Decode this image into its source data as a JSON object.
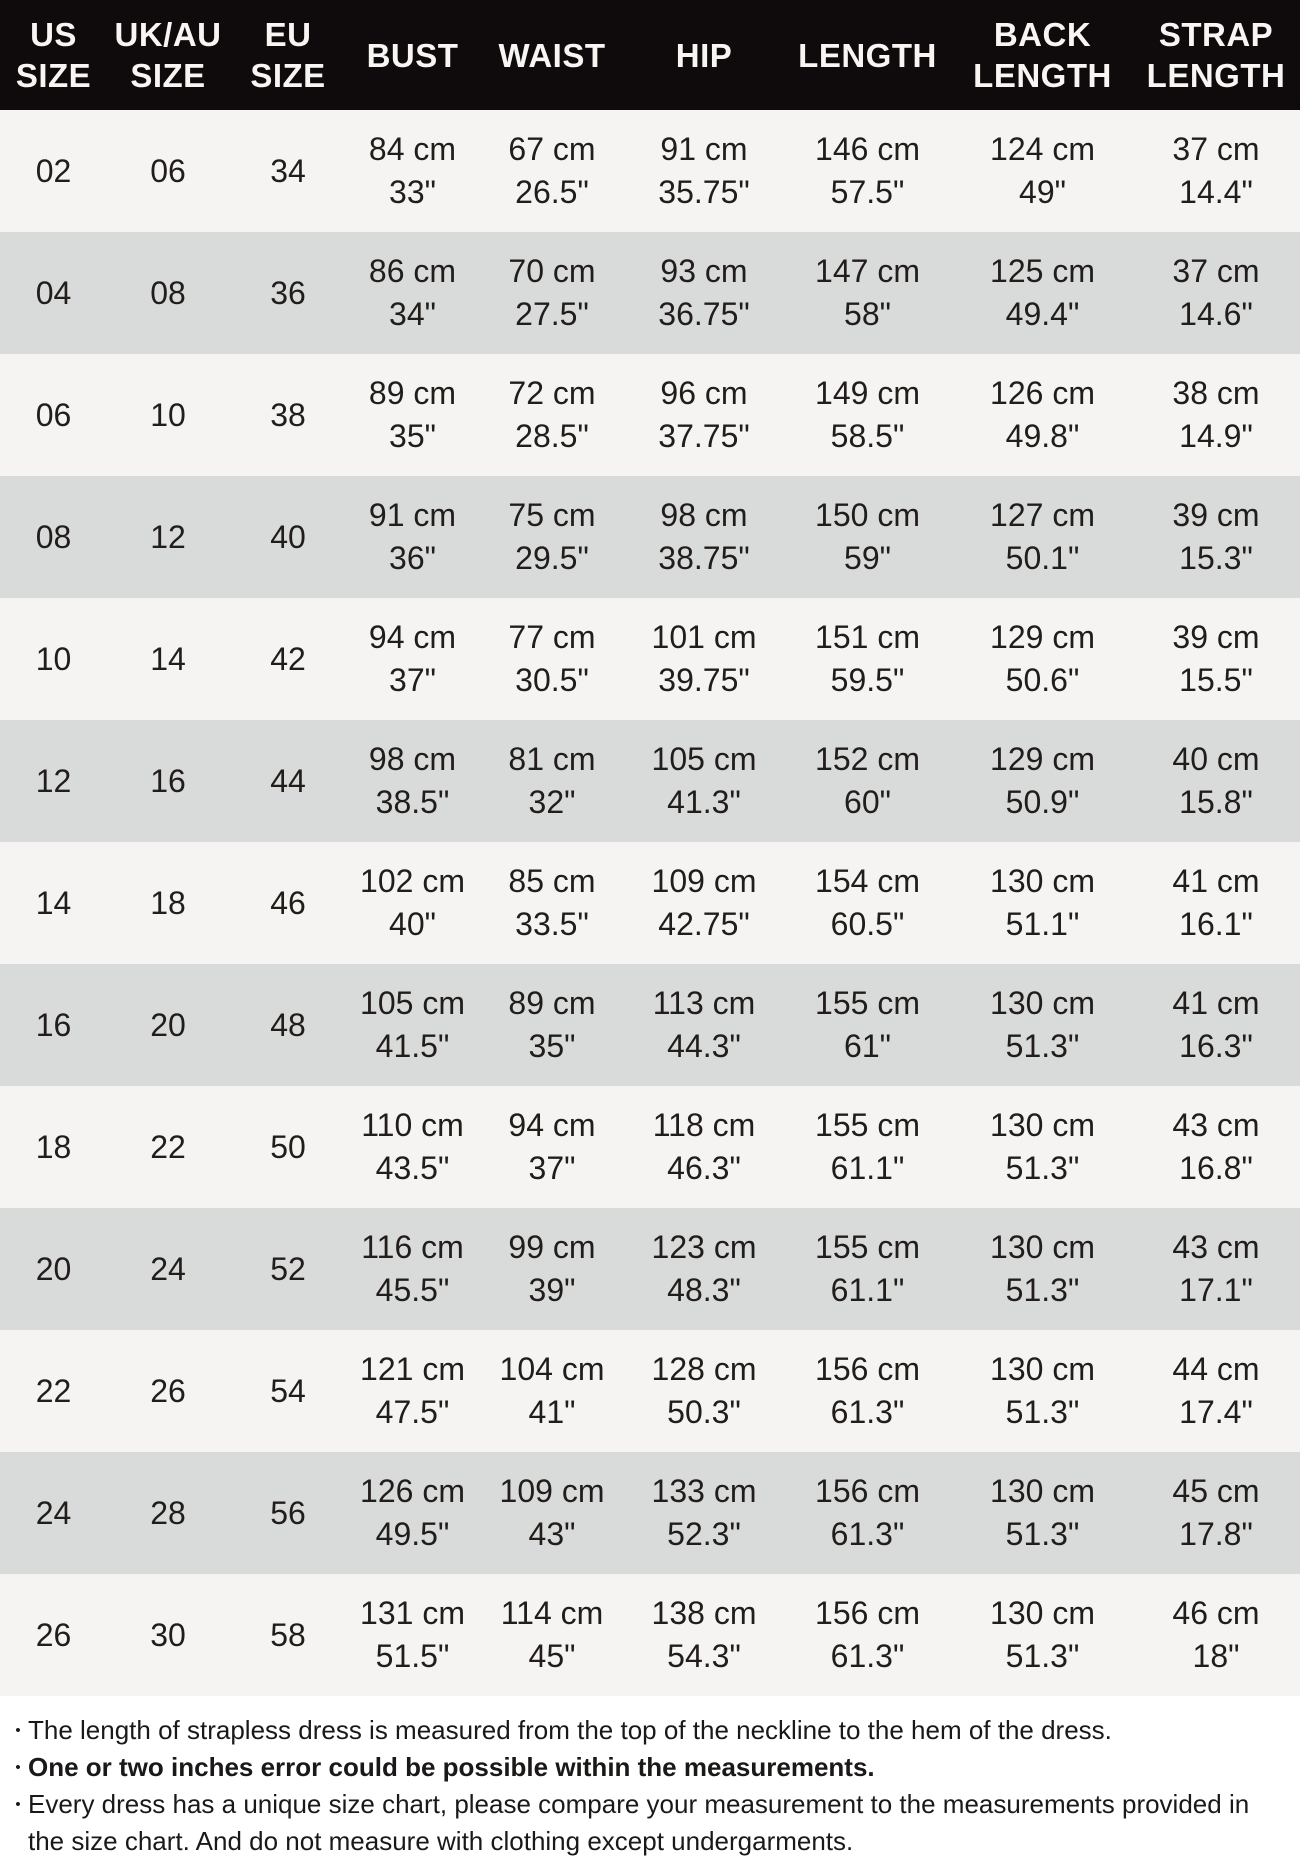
{
  "table": {
    "columns": [
      {
        "id": "us-size",
        "lines": [
          "US",
          "SIZE"
        ]
      },
      {
        "id": "uk-au-size",
        "lines": [
          "UK/AU",
          "SIZE"
        ]
      },
      {
        "id": "eu-size",
        "lines": [
          "EU",
          "SIZE"
        ]
      },
      {
        "id": "bust",
        "lines": [
          "BUST"
        ]
      },
      {
        "id": "waist",
        "lines": [
          "WAIST"
        ]
      },
      {
        "id": "hip",
        "lines": [
          "HIP"
        ]
      },
      {
        "id": "length",
        "lines": [
          "LENGTH"
        ]
      },
      {
        "id": "back-length",
        "lines": [
          "BACK",
          "LENGTH"
        ]
      },
      {
        "id": "strap-length",
        "lines": [
          "STRAP",
          "LENGTH"
        ]
      }
    ],
    "rows": [
      {
        "cells": [
          [
            "02"
          ],
          [
            "06"
          ],
          [
            "34"
          ],
          [
            "84 cm",
            "33\""
          ],
          [
            "67 cm",
            "26.5\""
          ],
          [
            "91 cm",
            "35.75\""
          ],
          [
            "146 cm",
            "57.5\""
          ],
          [
            "124 cm",
            "49\""
          ],
          [
            "37 cm",
            "14.4\""
          ]
        ]
      },
      {
        "cells": [
          [
            "04"
          ],
          [
            "08"
          ],
          [
            "36"
          ],
          [
            "86 cm",
            "34\""
          ],
          [
            "70 cm",
            "27.5\""
          ],
          [
            "93 cm",
            "36.75\""
          ],
          [
            "147 cm",
            "58\""
          ],
          [
            "125 cm",
            "49.4\""
          ],
          [
            "37 cm",
            "14.6\""
          ]
        ]
      },
      {
        "cells": [
          [
            "06"
          ],
          [
            "10"
          ],
          [
            "38"
          ],
          [
            "89 cm",
            "35\""
          ],
          [
            "72 cm",
            "28.5\""
          ],
          [
            "96 cm",
            "37.75\""
          ],
          [
            "149 cm",
            "58.5\""
          ],
          [
            "126 cm",
            "49.8\""
          ],
          [
            "38 cm",
            "14.9\""
          ]
        ]
      },
      {
        "cells": [
          [
            "08"
          ],
          [
            "12"
          ],
          [
            "40"
          ],
          [
            "91 cm",
            "36\""
          ],
          [
            "75 cm",
            "29.5\""
          ],
          [
            "98 cm",
            "38.75\""
          ],
          [
            "150 cm",
            "59\""
          ],
          [
            "127 cm",
            "50.1\""
          ],
          [
            "39 cm",
            "15.3\""
          ]
        ]
      },
      {
        "cells": [
          [
            "10"
          ],
          [
            "14"
          ],
          [
            "42"
          ],
          [
            "94 cm",
            "37\""
          ],
          [
            "77 cm",
            "30.5\""
          ],
          [
            "101 cm",
            "39.75\""
          ],
          [
            "151 cm",
            "59.5\""
          ],
          [
            "129 cm",
            "50.6\""
          ],
          [
            "39 cm",
            "15.5\""
          ]
        ]
      },
      {
        "cells": [
          [
            "12"
          ],
          [
            "16"
          ],
          [
            "44"
          ],
          [
            "98 cm",
            "38.5\""
          ],
          [
            "81 cm",
            "32\""
          ],
          [
            "105 cm",
            "41.3\""
          ],
          [
            "152 cm",
            "60\""
          ],
          [
            "129 cm",
            "50.9\""
          ],
          [
            "40 cm",
            "15.8\""
          ]
        ]
      },
      {
        "cells": [
          [
            "14"
          ],
          [
            "18"
          ],
          [
            "46"
          ],
          [
            "102 cm",
            "40\""
          ],
          [
            "85 cm",
            "33.5\""
          ],
          [
            "109 cm",
            "42.75\""
          ],
          [
            "154 cm",
            "60.5\""
          ],
          [
            "130 cm",
            "51.1\""
          ],
          [
            "41 cm",
            "16.1\""
          ]
        ]
      },
      {
        "cells": [
          [
            "16"
          ],
          [
            "20"
          ],
          [
            "48"
          ],
          [
            "105 cm",
            "41.5\""
          ],
          [
            "89 cm",
            "35\""
          ],
          [
            "113 cm",
            "44.3\""
          ],
          [
            "155 cm",
            "61\""
          ],
          [
            "130 cm",
            "51.3\""
          ],
          [
            "41 cm",
            "16.3\""
          ]
        ]
      },
      {
        "cells": [
          [
            "18"
          ],
          [
            "22"
          ],
          [
            "50"
          ],
          [
            "110 cm",
            "43.5\""
          ],
          [
            "94 cm",
            "37\""
          ],
          [
            "118 cm",
            "46.3\""
          ],
          [
            "155 cm",
            "61.1\""
          ],
          [
            "130 cm",
            "51.3\""
          ],
          [
            "43 cm",
            "16.8\""
          ]
        ]
      },
      {
        "cells": [
          [
            "20"
          ],
          [
            "24"
          ],
          [
            "52"
          ],
          [
            "116 cm",
            "45.5\""
          ],
          [
            "99 cm",
            "39\""
          ],
          [
            "123 cm",
            "48.3\""
          ],
          [
            "155 cm",
            "61.1\""
          ],
          [
            "130 cm",
            "51.3\""
          ],
          [
            "43 cm",
            "17.1\""
          ]
        ]
      },
      {
        "cells": [
          [
            "22"
          ],
          [
            "26"
          ],
          [
            "54"
          ],
          [
            "121 cm",
            "47.5\""
          ],
          [
            "104 cm",
            "41\""
          ],
          [
            "128 cm",
            "50.3\""
          ],
          [
            "156 cm",
            "61.3\""
          ],
          [
            "130 cm",
            "51.3\""
          ],
          [
            "44 cm",
            "17.4\""
          ]
        ]
      },
      {
        "cells": [
          [
            "24"
          ],
          [
            "28"
          ],
          [
            "56"
          ],
          [
            "126 cm",
            "49.5\""
          ],
          [
            "109 cm",
            "43\""
          ],
          [
            "133 cm",
            "52.3\""
          ],
          [
            "156 cm",
            "61.3\""
          ],
          [
            "130 cm",
            "51.3\""
          ],
          [
            "45 cm",
            "17.8\""
          ]
        ]
      },
      {
        "cells": [
          [
            "26"
          ],
          [
            "30"
          ],
          [
            "58"
          ],
          [
            "131 cm",
            "51.5\""
          ],
          [
            "114 cm",
            "45\""
          ],
          [
            "138 cm",
            "54.3\""
          ],
          [
            "156 cm",
            "61.3\""
          ],
          [
            "130 cm",
            "51.3\""
          ],
          [
            "46 cm",
            "18\""
          ]
        ]
      }
    ]
  },
  "notes": [
    {
      "bullet": "•",
      "bold": false,
      "text": "The length of strapless dress is measured from the top of the neckline to the hem of the dress."
    },
    {
      "bullet": "•",
      "bold": true,
      "text": "One or two inches error could be possible within the measurements."
    },
    {
      "bullet": "•",
      "bold": false,
      "text": "Every dress has a unique size chart, please compare your measurement to the measurements provided in the size chart. And do not measure with clothing except undergarments."
    }
  ],
  "colors": {
    "header_bg": "#0f0b0c",
    "header_text": "#f8f6f3",
    "row_light": "#f6f4f2",
    "row_dark": "#d9dbda",
    "body_text": "#211d1a",
    "page_bg": "#ffffff"
  }
}
